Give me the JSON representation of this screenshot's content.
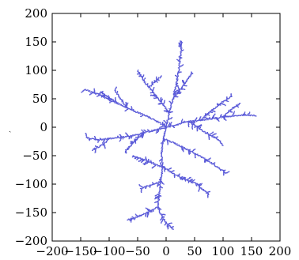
{
  "chart_data": {
    "type": "scatter",
    "title": "",
    "xlabel": "",
    "ylabel": "",
    "xlim": [
      -200,
      200
    ],
    "ylim": [
      -200,
      200
    ],
    "xticks": [
      -200,
      -150,
      -100,
      -50,
      0,
      50,
      100,
      150,
      200
    ],
    "yticks": [
      -200,
      -150,
      -100,
      -50,
      0,
      50,
      100,
      150,
      200
    ],
    "grid": false,
    "legend": "none",
    "colors": {
      "points": "#5a5ad8",
      "axes": "#000000",
      "background": "#ffffff"
    },
    "axis_mark": "ˏ",
    "branches": [
      {
        "x": [
          0,
          -5,
          -8,
          -6,
          -10,
          -12,
          -15
        ],
        "y": [
          0,
          -20,
          -45,
          -70,
          -95,
          -120,
          -140
        ]
      },
      {
        "x": [
          -15,
          -30,
          -45,
          -58,
          -68
        ],
        "y": [
          -140,
          -148,
          -155,
          -160,
          -163
        ]
      },
      {
        "x": [
          -15,
          -8,
          0,
          8,
          12
        ],
        "y": [
          -140,
          -155,
          -168,
          -176,
          -180
        ]
      },
      {
        "x": [
          -8,
          -22,
          -35,
          -45
        ],
        "y": [
          -95,
          -100,
          -104,
          -108
        ]
      },
      {
        "x": [
          -6,
          -20,
          -32,
          -45,
          -58
        ],
        "y": [
          -70,
          -65,
          -60,
          -55,
          -50
        ]
      },
      {
        "x": [
          -6,
          10,
          25,
          40,
          55,
          65,
          75
        ],
        "y": [
          -70,
          -80,
          -88,
          -95,
          -100,
          -110,
          -118
        ]
      },
      {
        "x": [
          -5,
          15,
          35,
          55,
          72,
          90,
          105
        ],
        "y": [
          -20,
          -28,
          -38,
          -48,
          -58,
          -70,
          -80
        ]
      },
      {
        "x": [
          0,
          20,
          40,
          60,
          80,
          100,
          120,
          140,
          158
        ],
        "y": [
          0,
          5,
          10,
          12,
          15,
          18,
          20,
          22,
          20
        ]
      },
      {
        "x": [
          60,
          75,
          90,
          105,
          115
        ],
        "y": [
          12,
          25,
          38,
          48,
          55
        ]
      },
      {
        "x": [
          100,
          110,
          120,
          130
        ],
        "y": [
          18,
          28,
          36,
          42
        ]
      },
      {
        "x": [
          40,
          55,
          70,
          85,
          95,
          100
        ],
        "y": [
          10,
          0,
          -10,
          -18,
          -25,
          -32
        ]
      },
      {
        "x": [
          0,
          5,
          12,
          18,
          22,
          25,
          28
        ],
        "y": [
          0,
          25,
          50,
          75,
          100,
          125,
          150
        ]
      },
      {
        "x": [
          12,
          20,
          28,
          38,
          45
        ],
        "y": [
          50,
          60,
          70,
          85,
          95
        ]
      },
      {
        "x": [
          5,
          -5,
          -18,
          -30,
          -40,
          -45,
          -50
        ],
        "y": [
          25,
          40,
          55,
          70,
          82,
          92,
          100
        ]
      },
      {
        "x": [
          -30,
          -20,
          -8
        ],
        "y": [
          70,
          80,
          90
        ]
      },
      {
        "x": [
          0,
          -15,
          -35,
          -55,
          -70,
          -85,
          -100,
          -115
        ],
        "y": [
          0,
          10,
          20,
          28,
          35,
          42,
          52,
          62
        ]
      },
      {
        "x": [
          -85,
          -100,
          -115,
          -130,
          -143
        ],
        "y": [
          42,
          48,
          56,
          62,
          66
        ]
      },
      {
        "x": [
          -70,
          -80,
          -90
        ],
        "y": [
          35,
          50,
          65
        ]
      },
      {
        "x": [
          0,
          -20,
          -40,
          -60,
          -80,
          -100,
          -120,
          -140
        ],
        "y": [
          0,
          -5,
          -10,
          -15,
          -18,
          -20,
          -22,
          -18
        ]
      },
      {
        "x": [
          -100,
          -110,
          -120,
          -130
        ],
        "y": [
          -20,
          -30,
          -35,
          -40
        ]
      },
      {
        "x": [
          -40,
          -55,
          -65,
          -72
        ],
        "y": [
          -10,
          -25,
          -35,
          -42
        ]
      }
    ]
  }
}
